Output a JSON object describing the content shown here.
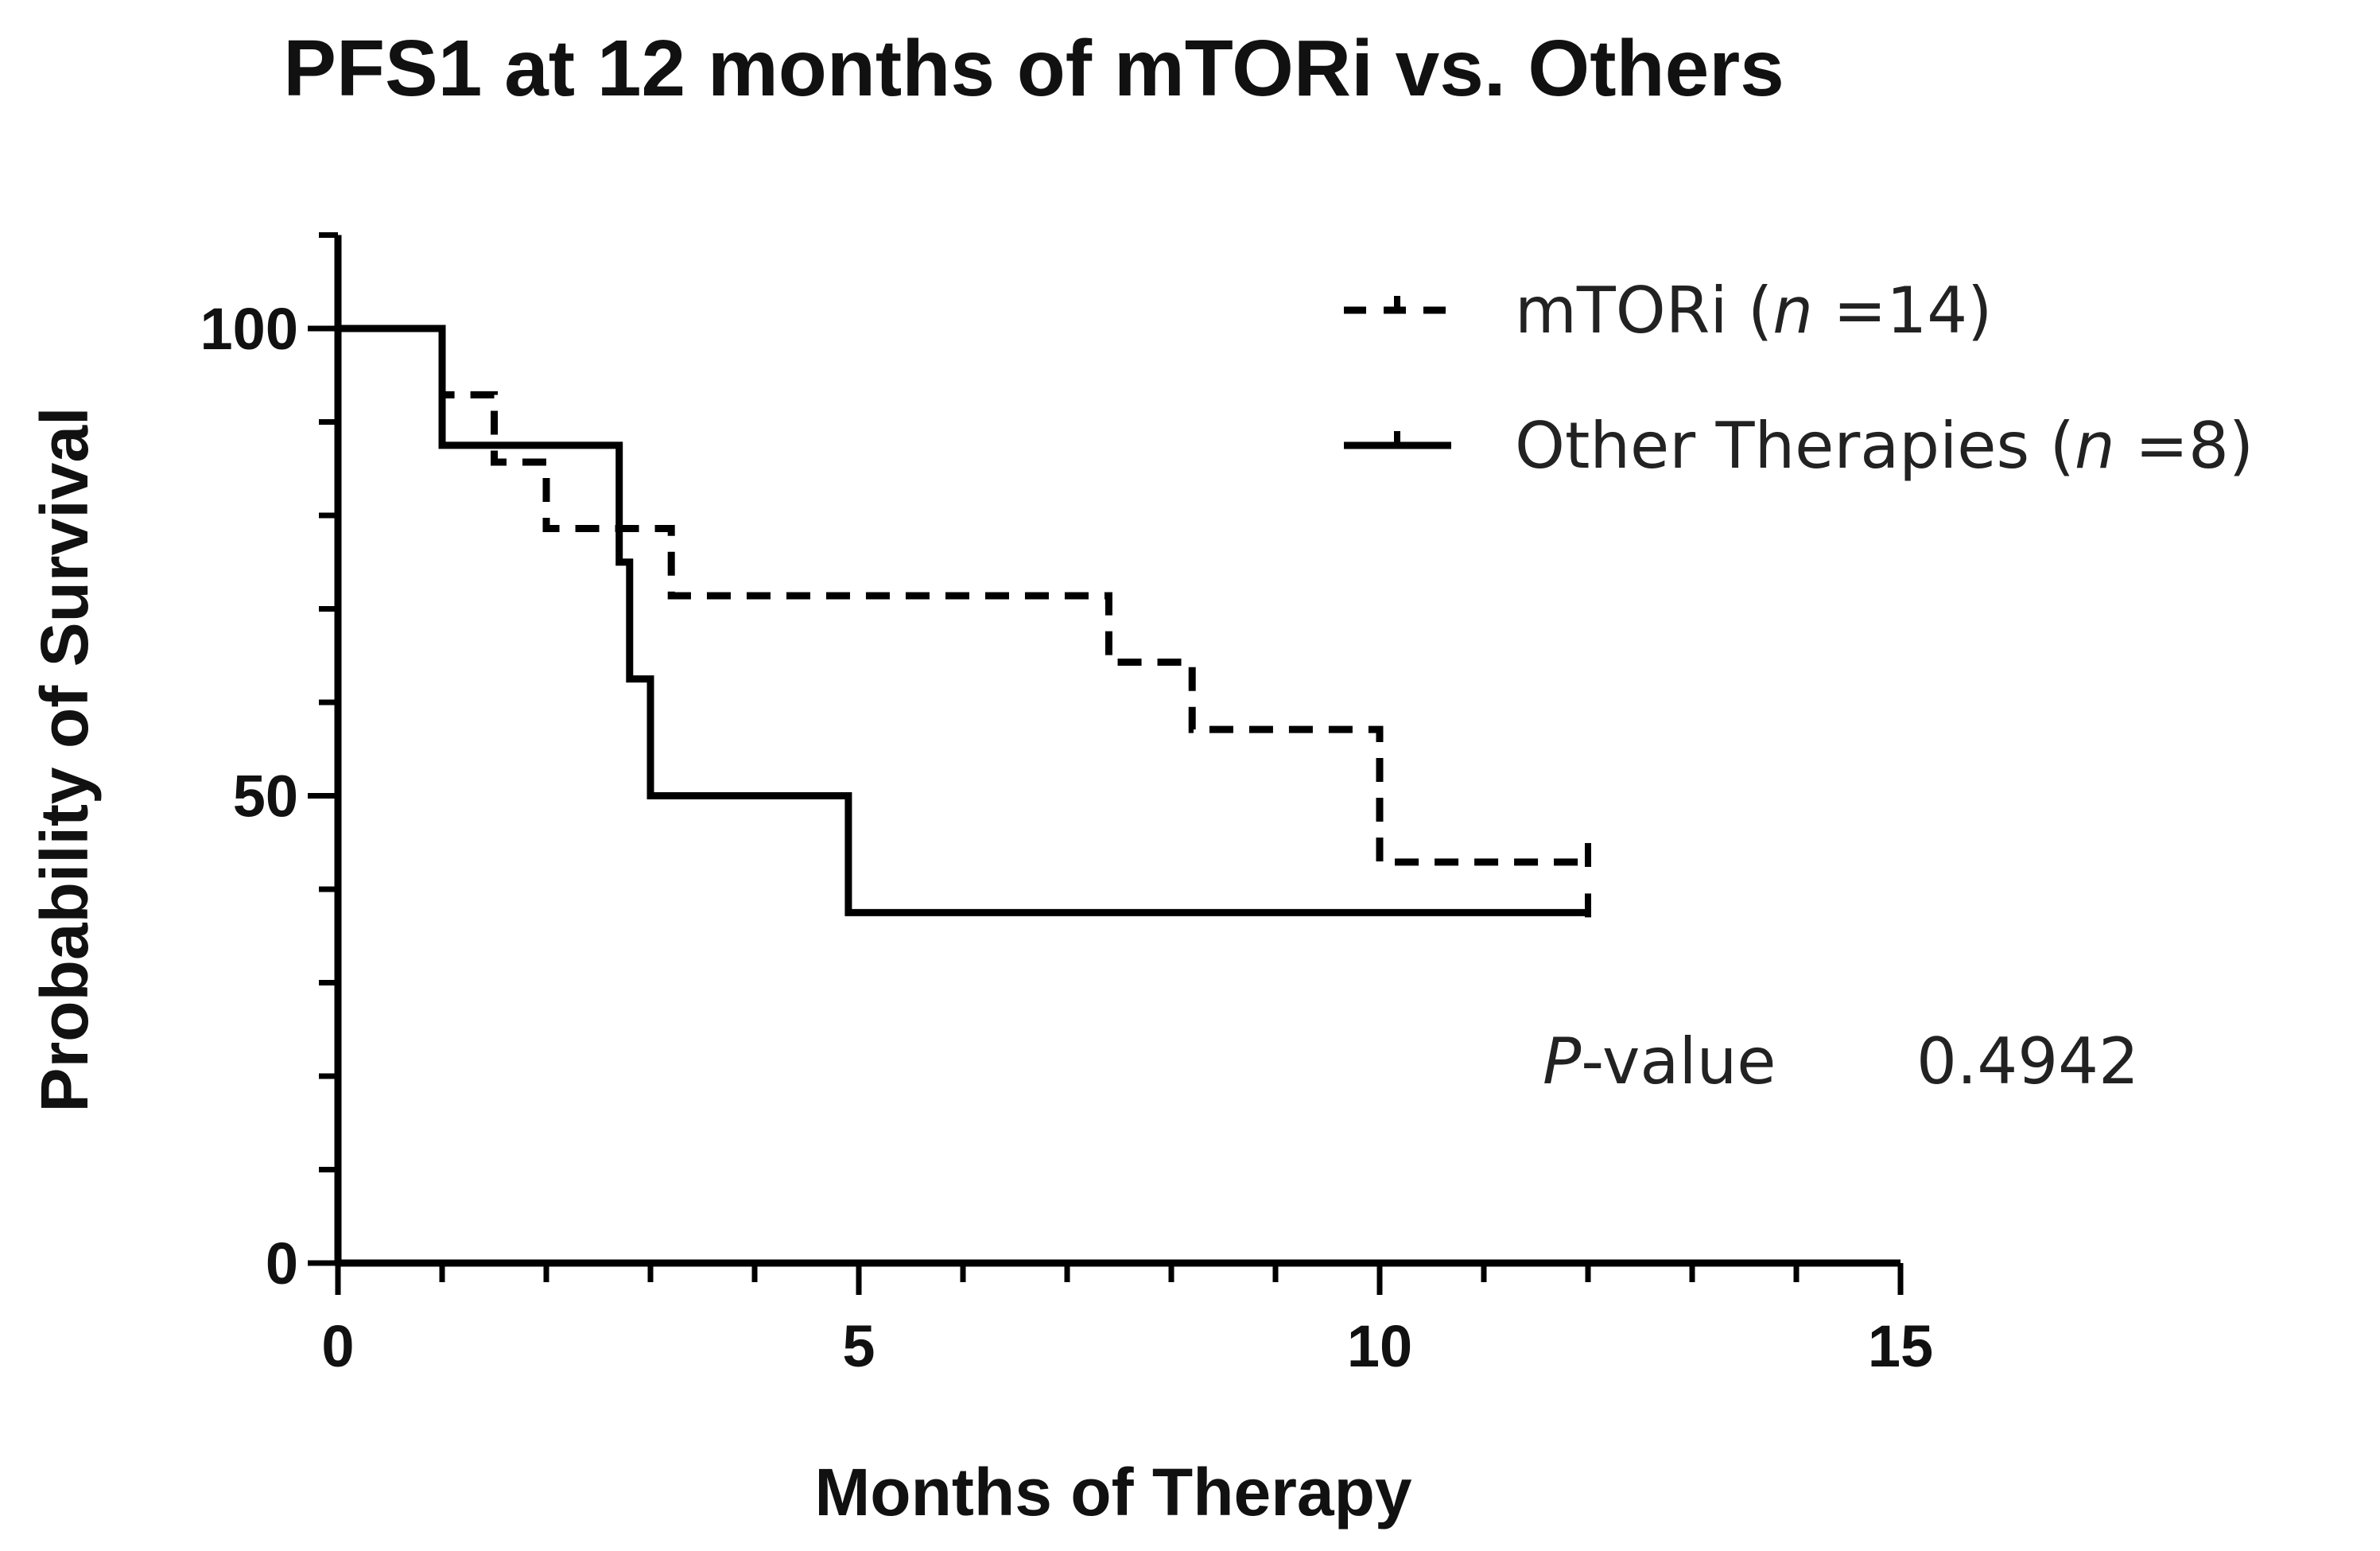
{
  "chart_data": {
    "type": "line",
    "title": "PFS1 at 12 months of mTORi vs. Others",
    "xlabel": "Months of Therapy",
    "ylabel": "Probability of Survival",
    "xlim": [
      0,
      15
    ],
    "ylim": [
      0,
      110
    ],
    "x_ticks": [
      0,
      5,
      10,
      15
    ],
    "y_ticks": [
      0,
      50,
      100
    ],
    "x_tick_labels": [
      "0",
      "5",
      "10",
      "15"
    ],
    "y_tick_labels": [
      "0",
      "50",
      "100"
    ],
    "legend_position": "top-right",
    "series": [
      {
        "name": "mTORi",
        "legend": {
          "prefix": "mTORi (",
          "n_symbol": "n",
          "suffix": " =14)"
        },
        "style": "dashed",
        "color": "#000000",
        "steps": [
          [
            0,
            100
          ],
          [
            1.0,
            92.9
          ],
          [
            1.5,
            85.7
          ],
          [
            2.0,
            78.6
          ],
          [
            3.2,
            71.4
          ],
          [
            7.4,
            64.3
          ],
          [
            8.2,
            57.1
          ],
          [
            10.0,
            42.9
          ],
          [
            12.0,
            42.9
          ]
        ],
        "censor_x": [
          12.0
        ]
      },
      {
        "name": "Other Therapies",
        "legend": {
          "prefix": "Other Therapies (",
          "n_symbol": "n",
          "suffix": " =8)"
        },
        "style": "solid",
        "color": "#000000",
        "steps": [
          [
            0,
            100
          ],
          [
            1.0,
            87.5
          ],
          [
            2.7,
            75.0
          ],
          [
            2.8,
            62.5
          ],
          [
            3.0,
            50.0
          ],
          [
            4.9,
            37.5
          ],
          [
            12.0,
            37.5
          ]
        ],
        "censor_x": [
          12.0
        ]
      }
    ],
    "annotation": {
      "label_symbol": "P",
      "label_rest": "-value",
      "value": "0.4942"
    }
  }
}
